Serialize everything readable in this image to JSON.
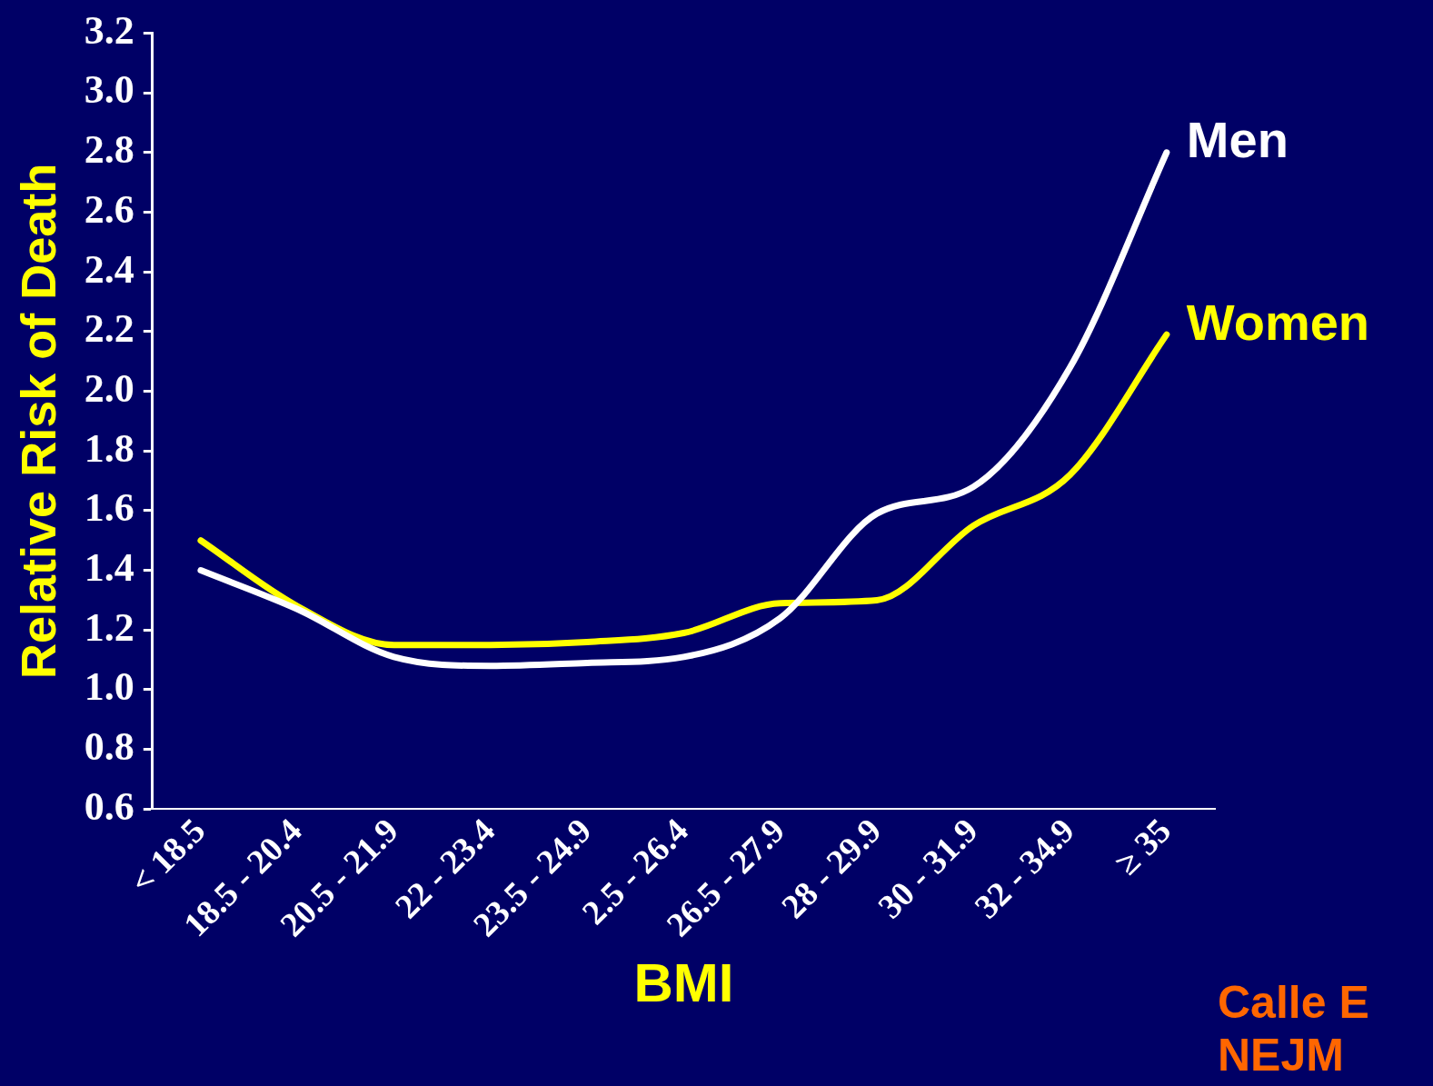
{
  "chart_data": {
    "type": "line",
    "xlabel": "BMI",
    "ylabel": "Relative Risk of Death",
    "categories": [
      "< 18.5",
      "18.5 - 20.4",
      "20.5 - 21.9",
      "22 - 23.4",
      "23.5 - 24.9",
      "2.5 - 26.4",
      "26.5 - 27.9",
      "28 - 29.9",
      "30 - 31.9",
      "32 - 34.9",
      "≥ 35"
    ],
    "series": [
      {
        "name": "Men",
        "color": "#ffffff",
        "values": [
          1.4,
          1.27,
          1.11,
          1.08,
          1.09,
          1.11,
          1.24,
          1.59,
          1.68,
          2.08,
          2.8
        ]
      },
      {
        "name": "Women",
        "color": "#ffff00",
        "values": [
          1.5,
          1.28,
          1.15,
          1.15,
          1.16,
          1.19,
          1.29,
          1.3,
          1.55,
          1.72,
          2.19
        ]
      }
    ],
    "ylim": [
      0.6,
      3.2
    ],
    "yticks": [
      0.6,
      0.8,
      {
        "value": 1,
        "label": "1.0"
      },
      1.2,
      1.4,
      1.6,
      1.8,
      {
        "value": 2,
        "label": "2.0"
      },
      2.2,
      2.4,
      2.6,
      2.8,
      {
        "value": 3,
        "label": "3.0"
      },
      3.2
    ],
    "grid": false,
    "legend": false,
    "marker": "none",
    "line_style": "solid",
    "annotations": [
      "Calle E",
      "NEJM"
    ]
  }
}
